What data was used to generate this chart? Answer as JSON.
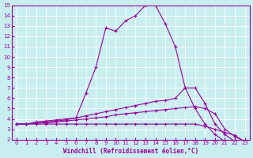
{
  "title": "",
  "xlabel": "Windchill (Refroidissement éolien,°C)",
  "ylabel": "",
  "bg_color": "#c8eef0",
  "line_color": "#990099",
  "grid_color": "#ffffff",
  "xlim": [
    -0.5,
    23.5
  ],
  "ylim": [
    2,
    15
  ],
  "yticks": [
    2,
    3,
    4,
    5,
    6,
    7,
    8,
    9,
    10,
    11,
    12,
    13,
    14,
    15
  ],
  "xticks": [
    0,
    1,
    2,
    3,
    4,
    5,
    6,
    7,
    8,
    9,
    10,
    11,
    12,
    13,
    14,
    15,
    16,
    17,
    18,
    19,
    20,
    21,
    22,
    23
  ],
  "curves": [
    {
      "x": [
        0,
        1,
        2,
        3,
        4,
        5,
        6,
        7,
        8,
        9,
        10,
        11,
        12,
        13,
        14,
        15,
        16,
        17,
        18,
        19,
        20,
        21,
        22,
        23
      ],
      "y": [
        3.5,
        3.5,
        3.7,
        3.8,
        3.9,
        4.0,
        4.1,
        6.5,
        9.0,
        12.8,
        12.5,
        13.5,
        14.0,
        15.0,
        15.0,
        13.2,
        11.0,
        7.0,
        5.0,
        3.5,
        2.5,
        1.8,
        1.8,
        1.8
      ]
    },
    {
      "x": [
        0,
        1,
        2,
        3,
        4,
        5,
        6,
        7,
        8,
        9,
        10,
        11,
        12,
        13,
        14,
        15,
        16,
        17,
        18,
        19,
        20,
        21,
        22,
        23
      ],
      "y": [
        3.5,
        3.5,
        3.6,
        3.7,
        3.8,
        3.9,
        4.1,
        4.3,
        4.5,
        4.7,
        4.9,
        5.1,
        5.3,
        5.5,
        5.7,
        5.8,
        6.0,
        7.0,
        7.0,
        5.5,
        3.5,
        2.5,
        1.8,
        1.8
      ]
    },
    {
      "x": [
        0,
        1,
        2,
        3,
        4,
        5,
        6,
        7,
        8,
        9,
        10,
        11,
        12,
        13,
        14,
        15,
        16,
        17,
        18,
        19,
        20,
        21,
        22,
        23
      ],
      "y": [
        3.5,
        3.5,
        3.6,
        3.6,
        3.7,
        3.8,
        3.9,
        4.0,
        4.1,
        4.2,
        4.4,
        4.5,
        4.6,
        4.7,
        4.8,
        4.9,
        5.0,
        5.1,
        5.2,
        5.0,
        4.5,
        3.0,
        2.3,
        1.8
      ]
    },
    {
      "x": [
        0,
        1,
        2,
        3,
        4,
        5,
        6,
        7,
        8,
        9,
        10,
        11,
        12,
        13,
        14,
        15,
        16,
        17,
        18,
        19,
        20,
        21,
        22,
        23
      ],
      "y": [
        3.5,
        3.5,
        3.5,
        3.5,
        3.5,
        3.5,
        3.5,
        3.5,
        3.5,
        3.5,
        3.5,
        3.5,
        3.5,
        3.5,
        3.5,
        3.5,
        3.5,
        3.5,
        3.5,
        3.3,
        3.0,
        2.7,
        2.4,
        1.8
      ]
    }
  ]
}
